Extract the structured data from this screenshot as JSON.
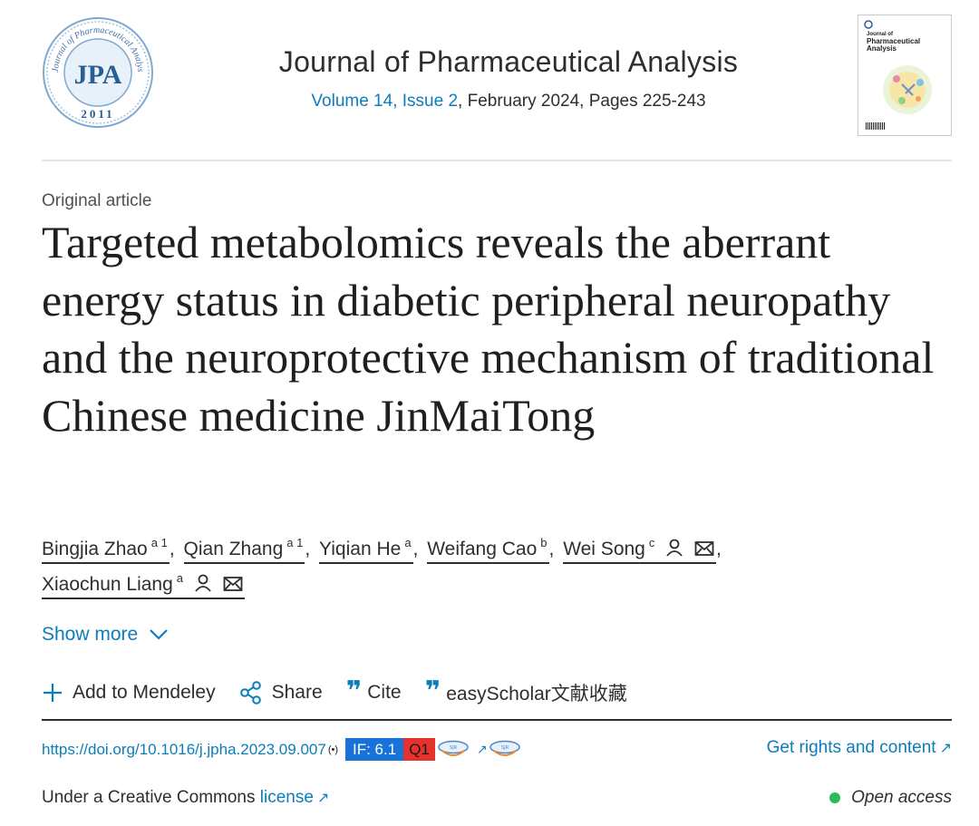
{
  "header": {
    "logo_ring_text": "Journal of Pharmaceutical Analysis",
    "logo_letters": "JPA",
    "logo_year": "2011",
    "journal_title": "Journal of Pharmaceutical Analysis",
    "volume_link": "Volume 14, Issue 2",
    "issue_details": ", February 2024, Pages 225-243",
    "cover": {
      "line1": "Journal of",
      "line2": "Pharmaceutical",
      "line3": "Analysis"
    }
  },
  "article": {
    "type": "Original article",
    "title": "Targeted metabolomics reveals the aberrant energy status in diabetic peripheral neuropathy and the neuroprotective mechanism of traditional Chinese medicine JinMaiTong"
  },
  "authors": [
    {
      "name": "Bingjia Zhao",
      "sup": "a 1"
    },
    {
      "name": "Qian Zhang",
      "sup": "a 1"
    },
    {
      "name": "Yiqian He",
      "sup": "a"
    },
    {
      "name": "Weifang Cao",
      "sup": "b"
    },
    {
      "name": "Wei Song",
      "sup": "c"
    },
    {
      "name": "Xiaochun Liang",
      "sup": "a"
    }
  ],
  "show_more": "Show more",
  "toolbar": {
    "mendeley": "Add to Mendeley",
    "share": "Share",
    "cite": "Cite",
    "easyscholar": "easyScholar文献收藏"
  },
  "doi": {
    "url": "https://doi.org/10.1016/j.jpha.2023.09.007",
    "radio_mark": "(•)",
    "impact_factor": "IF: 6.1",
    "quartile": "Q1",
    "arrow": "↗"
  },
  "rights": {
    "label": "Get rights and content",
    "arrow": "↗"
  },
  "license": {
    "prefix": "Under a Creative Commons ",
    "link": "license",
    "arrow": "↗"
  },
  "access": {
    "label": "Open access",
    "dot_color": "#2eb85c"
  },
  "colors": {
    "link": "#0c7dbb",
    "if_badge": "#1773d7",
    "q_badge": "#e6322d"
  }
}
